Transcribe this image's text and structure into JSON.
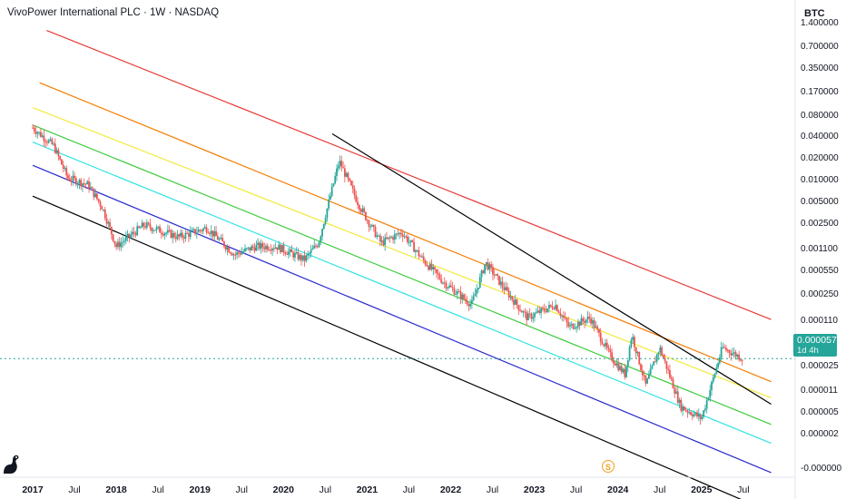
{
  "header": {
    "title": "VivoPower International PLC · 1W · NASDAQ",
    "currency": "BTC"
  },
  "price_badge": {
    "value": "0.000057",
    "countdown": "1d 4h",
    "color": "#26a69a"
  },
  "marker": {
    "label": "S",
    "color": "#f0a020"
  },
  "icons": {
    "logo": "tradingview-logo-icon"
  },
  "colors": {
    "up": "#26a69a",
    "down": "#ef5350",
    "channel_red": "#e53935",
    "channel_orange": "#f57c00",
    "channel_yellow": "#f2ea3a",
    "channel_green": "#3ccc3c",
    "channel_cyan": "#33e3e3",
    "channel_blue": "#2a2ad0",
    "channel_black": "#000000"
  },
  "chart_data": {
    "type": "candlestick",
    "title": "VivoPower International PLC · 1W · NASDAQ",
    "y_scale": "log",
    "y_unit": "BTC",
    "y_ticks": [
      "1.400000",
      "0.700000",
      "0.350000",
      "0.170000",
      "0.080000",
      "0.040000",
      "0.020000",
      "0.010000",
      "0.005000",
      "0.002500",
      "0.001100",
      "0.000550",
      "0.000250",
      "0.000110",
      "0.000057",
      "0.000025",
      "0.000011",
      "0.000005",
      "0.000002",
      "-0.000000"
    ],
    "x_ticks": [
      "2017",
      "Jul",
      "2018",
      "Jul",
      "2019",
      "Jul",
      "2020",
      "Jul",
      "2021",
      "Jul",
      "2022",
      "Jul",
      "2023",
      "Jul",
      "2024",
      "Jul",
      "2025",
      "Jul"
    ],
    "last_price": 5.7e-05,
    "series": [
      {
        "name": "",
        "waypoints": [
          [
            "2017-01",
            0.07
          ],
          [
            "2017-04",
            0.04
          ],
          [
            "2017-06",
            0.015
          ],
          [
            "2017-09",
            0.012
          ],
          [
            "2017-11",
            0.006
          ],
          [
            "2018-01",
            0.0018
          ],
          [
            "2018-05",
            0.0035
          ],
          [
            "2018-10",
            0.0024
          ],
          [
            "2019-02",
            0.0032
          ],
          [
            "2019-06",
            0.0014
          ],
          [
            "2019-09",
            0.0018
          ],
          [
            "2019-12",
            0.0018
          ],
          [
            "2020-04",
            0.0012
          ],
          [
            "2020-06",
            0.002
          ],
          [
            "2020-09",
            0.025
          ],
          [
            "2020-12",
            0.006
          ],
          [
            "2021-03",
            0.002
          ],
          [
            "2021-06",
            0.0028
          ],
          [
            "2021-09",
            0.0012
          ],
          [
            "2021-12",
            0.0006
          ],
          [
            "2022-04",
            0.0003
          ],
          [
            "2022-06",
            0.0011
          ],
          [
            "2022-09",
            0.00045
          ],
          [
            "2022-12",
            0.0002
          ],
          [
            "2023-04",
            0.0003
          ],
          [
            "2023-06",
            0.00015
          ],
          [
            "2023-09",
            0.0002
          ],
          [
            "2023-12",
            6e-05
          ],
          [
            "2024-02",
            3.5e-05
          ],
          [
            "2024-03",
            0.00012
          ],
          [
            "2024-05",
            2.5e-05
          ],
          [
            "2024-07",
            8e-05
          ],
          [
            "2024-10",
            1.3e-05
          ],
          [
            "2025-01",
            9e-06
          ],
          [
            "2025-04",
            8e-05
          ],
          [
            "2025-07",
            5.7e-05
          ]
        ]
      }
    ],
    "channel_lines": [
      {
        "color": "#e53935",
        "from": [
          "2017-03",
          1.4
        ],
        "to": [
          "2025-11",
          0.00019
        ]
      },
      {
        "color": "#f57c00",
        "from": [
          "2017-02",
          0.28
        ],
        "to": [
          "2025-11",
          2.8e-05
        ]
      },
      {
        "color": "#f2ea3a",
        "from": [
          "2017-01",
          0.13
        ],
        "to": [
          "2025-11",
          1.7e-05
        ]
      },
      {
        "color": "#3ccc3c",
        "from": [
          "2017-01",
          0.076
        ],
        "to": [
          "2025-11",
          7.5e-06
        ]
      },
      {
        "color": "#33e3e3",
        "from": [
          "2017-01",
          0.045
        ],
        "to": [
          "2025-11",
          4.2e-06
        ]
      },
      {
        "color": "#2a2ad0",
        "from": [
          "2017-01",
          0.022
        ],
        "to": [
          "2025-11",
          1.7e-06
        ]
      },
      {
        "color": "#000000",
        "from": [
          "2017-01",
          0.0085
        ],
        "to": [
          "2025-11",
          5e-07
        ]
      },
      {
        "color": "#000000",
        "from": [
          "2020-08",
          0.058
        ],
        "to": [
          "2025-11",
          1.4e-05
        ]
      }
    ]
  }
}
